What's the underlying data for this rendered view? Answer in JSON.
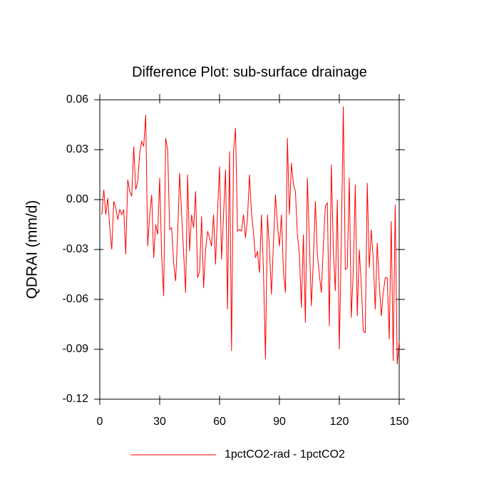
{
  "chart_data": {
    "type": "line",
    "title": "Difference Plot: sub-surface drainage",
    "ylabel": "QDRAI  (mm/d)",
    "x": [
      1,
      2,
      3,
      4,
      5,
      6,
      7,
      8,
      9,
      10,
      11,
      12,
      13,
      14,
      15,
      16,
      17,
      18,
      19,
      20,
      21,
      22,
      23,
      24,
      25,
      26,
      27,
      28,
      29,
      30,
      31,
      32,
      33,
      34,
      35,
      36,
      37,
      38,
      39,
      40,
      41,
      42,
      43,
      44,
      45,
      46,
      47,
      48,
      49,
      50,
      51,
      52,
      53,
      54,
      55,
      56,
      57,
      58,
      59,
      60,
      61,
      62,
      63,
      64,
      65,
      66,
      67,
      68,
      69,
      70,
      71,
      72,
      73,
      74,
      75,
      76,
      77,
      78,
      79,
      80,
      81,
      82,
      83,
      84,
      85,
      86,
      87,
      88,
      89,
      90,
      91,
      92,
      93,
      94,
      95,
      96,
      97,
      98,
      99,
      100,
      101,
      102,
      103,
      104,
      105,
      106,
      107,
      108,
      109,
      110,
      111,
      112,
      113,
      114,
      115,
      116,
      117,
      118,
      119,
      120,
      121,
      122,
      123,
      124,
      125,
      126,
      127,
      128,
      129,
      130,
      131,
      132,
      133,
      134,
      135,
      136,
      137,
      138,
      139,
      140,
      141,
      142,
      143,
      144,
      145,
      146,
      147,
      148,
      149,
      150
    ],
    "series": [
      {
        "name": "1pctCO2-rad - 1pctCO2",
        "color": "#ff0000",
        "values": [
          -0.009,
          0.006,
          -0.009,
          0.001,
          -0.017,
          -0.03,
          -0.001,
          -0.005,
          -0.012,
          -0.006,
          -0.009,
          -0.006,
          -0.033,
          0.012,
          0.005,
          0.002,
          0.032,
          0.006,
          0.011,
          0.028,
          0.035,
          0.032,
          0.051,
          -0.028,
          -0.009,
          0.003,
          -0.035,
          -0.015,
          -0.021,
          0.013,
          -0.034,
          -0.058,
          0.037,
          0.03,
          -0.018,
          -0.017,
          -0.038,
          -0.049,
          -0.021,
          0.016,
          -0.009,
          -0.032,
          -0.056,
          0.015,
          -0.031,
          -0.009,
          -0.017,
          0.005,
          -0.047,
          -0.043,
          -0.01,
          -0.053,
          -0.03,
          -0.019,
          -0.023,
          -0.028,
          -0.009,
          -0.039,
          -0.007,
          0.02,
          -0.036,
          -0.009,
          0.018,
          -0.066,
          0.029,
          -0.091,
          0.029,
          0.043,
          -0.019,
          -0.018,
          -0.019,
          -0.009,
          -0.023,
          -0.011,
          0.015,
          -0.008,
          -0.02,
          -0.035,
          -0.031,
          -0.044,
          -0.009,
          -0.043,
          -0.096,
          -0.009,
          -0.03,
          -0.057,
          -0.026,
          0.003,
          -0.015,
          -0.028,
          -0.009,
          -0.043,
          -0.056,
          0.037,
          -0.009,
          0.022,
          0.009,
          0.005,
          -0.021,
          -0.033,
          -0.065,
          -0.021,
          -0.074,
          0.013,
          -0.026,
          -0.064,
          -0.036,
          -0.001,
          -0.033,
          -0.045,
          -0.056,
          -0.028,
          -0.004,
          -0.002,
          -0.076,
          0.021,
          -0.03,
          -0.055,
          0.0,
          -0.09,
          -0.026,
          0.056,
          -0.042,
          -0.041,
          0.013,
          -0.071,
          -0.043,
          0.009,
          -0.07,
          -0.03,
          -0.051,
          -0.079,
          -0.08,
          0.01,
          -0.041,
          -0.018,
          -0.036,
          -0.066,
          -0.026,
          -0.05,
          -0.07,
          -0.056,
          -0.047,
          -0.047,
          -0.084,
          -0.013,
          -0.097,
          -0.003,
          -0.099,
          -0.085
        ]
      }
    ],
    "xlim": [
      0,
      150
    ],
    "xticks": [
      0,
      30,
      60,
      90,
      120,
      150
    ],
    "ylim": [
      -0.12,
      0.06
    ],
    "yticks": [
      -0.12,
      -0.09,
      -0.06,
      -0.03,
      {
        "value": 0,
        "label": "0.00"
      },
      0.03,
      0.06
    ],
    "legend": "bottom",
    "grid": false
  }
}
